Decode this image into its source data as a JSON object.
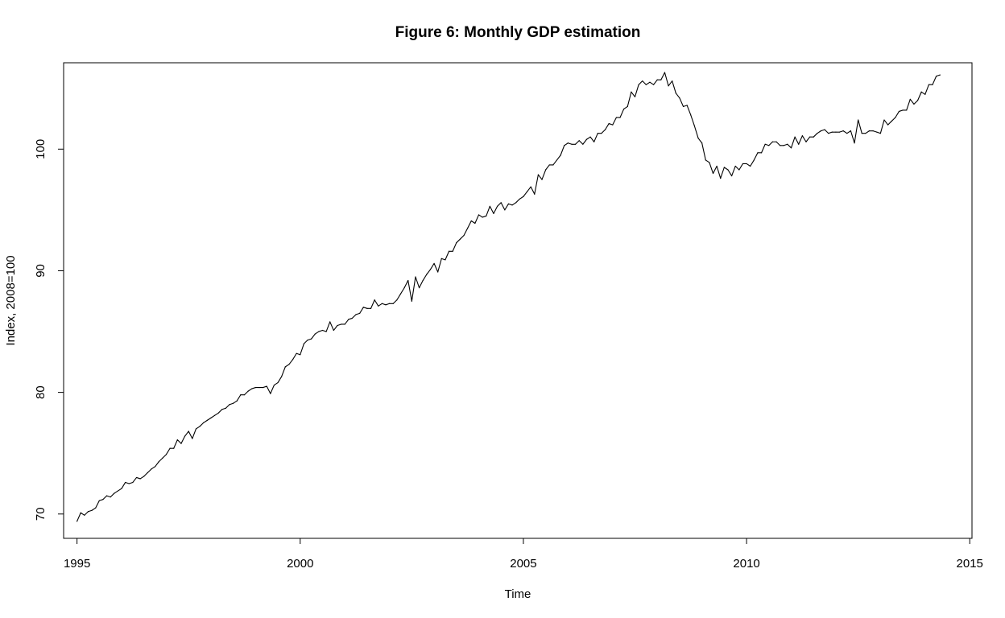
{
  "chart_data": {
    "type": "line",
    "title": "Figure 6: Monthly GDP estimation",
    "xlabel": "Time",
    "ylabel": "Index, 2008=100",
    "xlim": [
      1994.7,
      2015.05
    ],
    "ylim": [
      68.0,
      107.1
    ],
    "xticks": [
      1995,
      2000,
      2005,
      2010,
      2015
    ],
    "yticks": [
      70,
      80,
      90,
      100
    ],
    "grid": false,
    "legend": "none",
    "line_color": "#000000",
    "series": [
      {
        "start": "1995-01",
        "frequency": "monthly",
        "values": [
          69.4,
          70.1,
          69.9,
          70.2,
          70.3,
          70.5,
          71.1,
          71.2,
          71.5,
          71.4,
          71.7,
          71.9,
          72.1,
          72.6,
          72.5,
          72.6,
          73.0,
          72.9,
          73.1,
          73.4,
          73.7,
          73.9,
          74.3,
          74.6,
          74.9,
          75.4,
          75.4,
          76.1,
          75.8,
          76.4,
          76.8,
          76.2,
          77.0,
          77.2,
          77.5,
          77.7,
          77.9,
          78.1,
          78.3,
          78.6,
          78.7,
          79.0,
          79.1,
          79.3,
          79.8,
          79.8,
          80.1,
          80.3,
          80.4,
          80.4,
          80.4,
          80.5,
          79.9,
          80.6,
          80.8,
          81.3,
          82.1,
          82.3,
          82.7,
          83.2,
          83.1,
          84.0,
          84.3,
          84.4,
          84.8,
          85.0,
          85.1,
          85.0,
          85.8,
          85.1,
          85.5,
          85.6,
          85.6,
          86.0,
          86.1,
          86.4,
          86.5,
          87.0,
          86.9,
          86.9,
          87.6,
          87.1,
          87.3,
          87.2,
          87.3,
          87.3,
          87.6,
          88.1,
          88.6,
          89.2,
          87.5,
          89.5,
          88.6,
          89.2,
          89.7,
          90.1,
          90.6,
          89.9,
          91.0,
          90.9,
          91.6,
          91.6,
          92.3,
          92.6,
          92.9,
          93.5,
          94.1,
          93.9,
          94.6,
          94.4,
          94.5,
          95.3,
          94.7,
          95.3,
          95.6,
          95.0,
          95.5,
          95.4,
          95.6,
          95.9,
          96.1,
          96.5,
          96.9,
          96.3,
          97.9,
          97.5,
          98.3,
          98.7,
          98.7,
          99.1,
          99.5,
          100.3,
          100.5,
          100.4,
          100.4,
          100.7,
          100.4,
          100.8,
          101.0,
          100.6,
          101.3,
          101.3,
          101.6,
          102.1,
          102.0,
          102.6,
          102.6,
          103.3,
          103.5,
          104.7,
          104.3,
          105.3,
          105.6,
          105.3,
          105.5,
          105.3,
          105.7,
          105.7,
          106.3,
          105.2,
          105.6,
          104.6,
          104.2,
          103.5,
          103.6,
          102.8,
          101.9,
          100.9,
          100.5,
          99.1,
          98.9,
          98.0,
          98.6,
          97.6,
          98.5,
          98.3,
          97.8,
          98.6,
          98.3,
          98.8,
          98.8,
          98.6,
          99.1,
          99.7,
          99.7,
          100.4,
          100.3,
          100.6,
          100.6,
          100.3,
          100.3,
          100.4,
          100.1,
          101.0,
          100.4,
          101.1,
          100.6,
          101.0,
          101.0,
          101.3,
          101.5,
          101.6,
          101.3,
          101.4,
          101.4,
          101.4,
          101.5,
          101.3,
          101.5,
          100.5,
          102.4,
          101.3,
          101.3,
          101.5,
          101.5,
          101.4,
          101.3,
          102.4,
          102.0,
          102.3,
          102.6,
          103.1,
          103.2,
          103.2,
          104.1,
          103.7,
          104.0,
          104.7,
          104.5,
          105.3,
          105.3,
          106.0,
          106.1
        ]
      }
    ]
  }
}
